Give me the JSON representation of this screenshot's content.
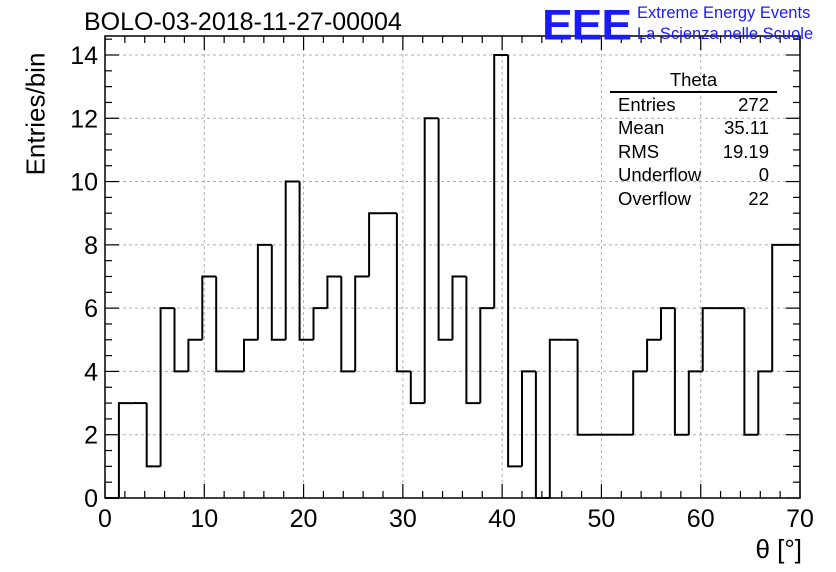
{
  "header": {
    "run_title": "BOLO-03-2018-11-27-00004",
    "logo_mark": "EEE",
    "logo_line1": "Extreme Energy Events",
    "logo_line2": "La Scienza nelle Scuole"
  },
  "stats_box": {
    "title": "Theta",
    "rows": [
      {
        "label": "Entries",
        "value": "272"
      },
      {
        "label": "Mean",
        "value": "35.11"
      },
      {
        "label": "RMS",
        "value": "19.19"
      },
      {
        "label": "Underflow",
        "value": "0"
      },
      {
        "label": "Overflow",
        "value": "22"
      }
    ]
  },
  "colors": {
    "logo": "#1a1aff",
    "line": "#000000",
    "grid": "#b0b0b0"
  },
  "chart_data": {
    "type": "bar",
    "histogram": true,
    "title": "BOLO-03-2018-11-27-00004",
    "xlabel": "θ [°]",
    "ylabel": "Entries/bin",
    "xlim": [
      0,
      70
    ],
    "ylim": [
      0,
      14.6
    ],
    "grid": true,
    "bin_width": 1.4,
    "bin_low_edges": [
      0,
      1.4,
      2.8,
      4.2,
      5.6,
      7.0,
      8.4,
      9.8,
      11.2,
      12.6,
      14.0,
      15.4,
      16.8,
      18.2,
      19.6,
      21.0,
      22.4,
      23.8,
      25.2,
      26.6,
      28.0,
      29.4,
      30.8,
      32.2,
      33.6,
      35.0,
      36.4,
      37.8,
      39.2,
      40.6,
      42.0,
      43.4,
      44.8,
      46.2,
      47.6,
      49.0,
      50.4,
      51.8,
      53.2,
      54.6,
      56.0,
      57.4,
      58.8,
      60.2,
      61.6,
      63.0,
      64.4,
      65.8,
      67.2,
      68.6
    ],
    "values": [
      0,
      3,
      3,
      1,
      6,
      4,
      5,
      7,
      4,
      4,
      5,
      8,
      5,
      10,
      5,
      6,
      7,
      4,
      7,
      9,
      9,
      4,
      3,
      12,
      5,
      7,
      3,
      6,
      14,
      1,
      4,
      0,
      5,
      5,
      2,
      2,
      2,
      2,
      4,
      5,
      6,
      2,
      4,
      6,
      6,
      6,
      2,
      4,
      8,
      8
    ],
    "x_ticks": [
      "0",
      "10",
      "20",
      "30",
      "40",
      "50",
      "60",
      "70"
    ],
    "y_ticks": [
      "0",
      "2",
      "4",
      "6",
      "8",
      "10",
      "12",
      "14"
    ]
  }
}
